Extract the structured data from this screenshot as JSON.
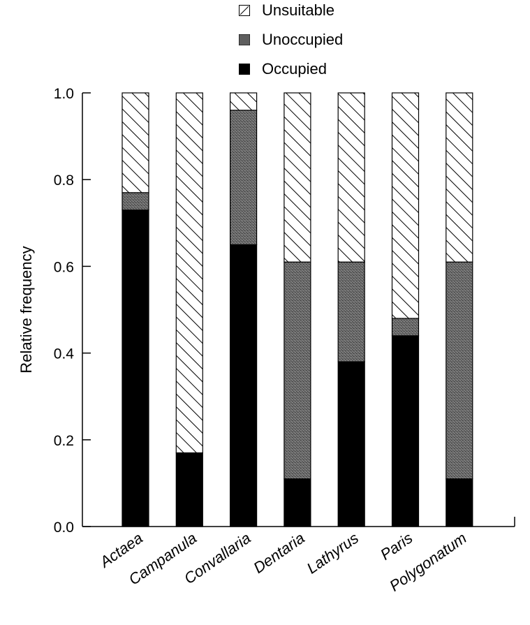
{
  "chart_data": {
    "type": "bar",
    "stacked": true,
    "categories": [
      "Actaea",
      "Campanula",
      "Convallaria",
      "Dentaria",
      "Lathyrus",
      "Paris",
      "Polygonatum"
    ],
    "series": [
      {
        "name": "Occupied",
        "values": [
          0.73,
          0.17,
          0.65,
          0.11,
          0.38,
          0.44,
          0.11
        ],
        "color": "#000000",
        "pattern": "solid"
      },
      {
        "name": "Unoccupied",
        "values": [
          0.04,
          0.0,
          0.31,
          0.5,
          0.23,
          0.04,
          0.5
        ],
        "color": "#666666",
        "pattern": "stipple"
      },
      {
        "name": "Unsuitable",
        "values": [
          0.23,
          0.83,
          0.04,
          0.39,
          0.39,
          0.52,
          0.39
        ],
        "color": "#ffffff",
        "pattern": "diagonal-hatch"
      }
    ],
    "legend_order": [
      "Unsuitable",
      "Unoccupied",
      "Occupied"
    ],
    "legend_position": "top-center",
    "ylabel": "Relative frequency",
    "xlabel": "",
    "title": "",
    "ylim": [
      0,
      1.0
    ],
    "yticks": [
      "0.0",
      "0.2",
      "0.4",
      "0.6",
      "0.8",
      "1.0"
    ],
    "xtick_style": "italic rotated",
    "grid": false
  }
}
